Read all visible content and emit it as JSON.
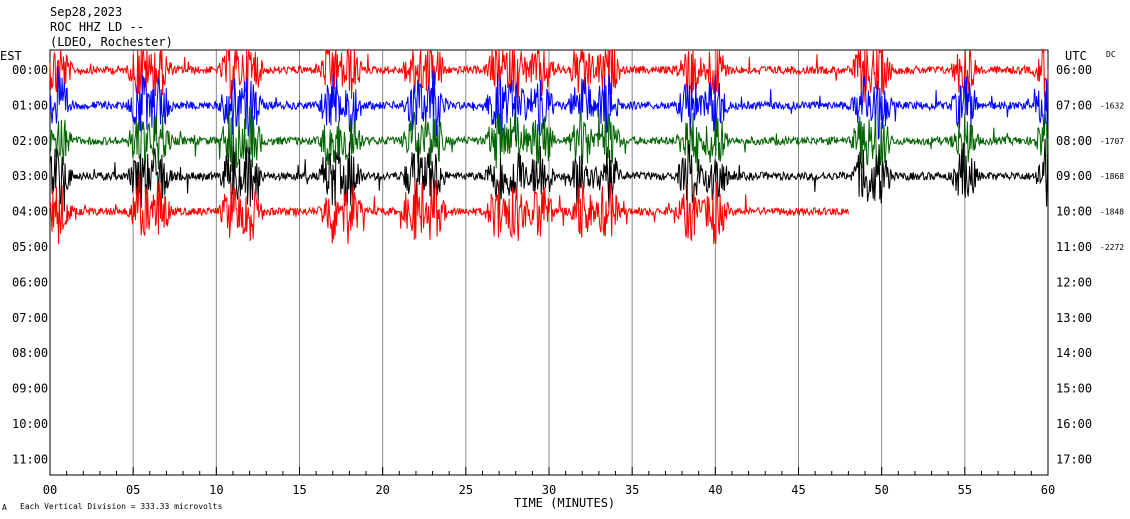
{
  "header": {
    "date": "Sep28,2023",
    "station": "ROC HHZ LD --",
    "network": "(LDEO, Rochester)"
  },
  "axes": {
    "left_label": "EST",
    "right_label": "UTC",
    "dc_label": "DC",
    "x_label": "TIME (MINUTES)",
    "footer": "Each Vertical Division =  333.33 microvolts",
    "corner_mark": "A"
  },
  "colors": {
    "red": "#ff0000",
    "blue": "#0000ff",
    "green": "#006400",
    "black": "#000000"
  },
  "chart_data": {
    "type": "line",
    "title": "",
    "xlabel": "TIME (MINUTES)",
    "ylabel": "",
    "x_ticks": [
      "00",
      "05",
      "10",
      "15",
      "20",
      "25",
      "30",
      "35",
      "40",
      "45",
      "50",
      "55",
      "60"
    ],
    "xlim": [
      0,
      60
    ],
    "left_ticks": [
      "00:00",
      "01:00",
      "02:00",
      "03:00",
      "04:00",
      "05:00",
      "06:00",
      "07:00",
      "08:00",
      "09:00",
      "10:00",
      "11:00"
    ],
    "right_ticks": [
      "06:00",
      "07:00",
      "08:00",
      "09:00",
      "10:00",
      "11:00",
      "12:00",
      "13:00",
      "14:00",
      "15:00",
      "16:00",
      "17:00"
    ],
    "dc_offsets": [
      "-1632",
      "-1707",
      "-1868",
      "-1848",
      "-2272"
    ],
    "grid": "vertical lines every 5 minutes",
    "series": [
      {
        "row": 0,
        "color": "red",
        "hour_est": "00:00",
        "end_minute": 60,
        "dc": ""
      },
      {
        "row": 1,
        "color": "blue",
        "hour_est": "01:00",
        "end_minute": 60,
        "dc": "-1632"
      },
      {
        "row": 2,
        "color": "green",
        "hour_est": "02:00",
        "end_minute": 60,
        "dc": "-1707"
      },
      {
        "row": 3,
        "color": "black",
        "hour_est": "03:00",
        "end_minute": 60,
        "dc": "-1868"
      },
      {
        "row": 4,
        "color": "red",
        "hour_est": "04:00",
        "end_minute": 48,
        "dc": "-1848"
      }
    ],
    "events_minutes": [
      0.5,
      5.5,
      6.5,
      11,
      12,
      17,
      18,
      22,
      23,
      27,
      28,
      29.5,
      32,
      33.5,
      38.5,
      40,
      49,
      49.8,
      55,
      60
    ]
  }
}
